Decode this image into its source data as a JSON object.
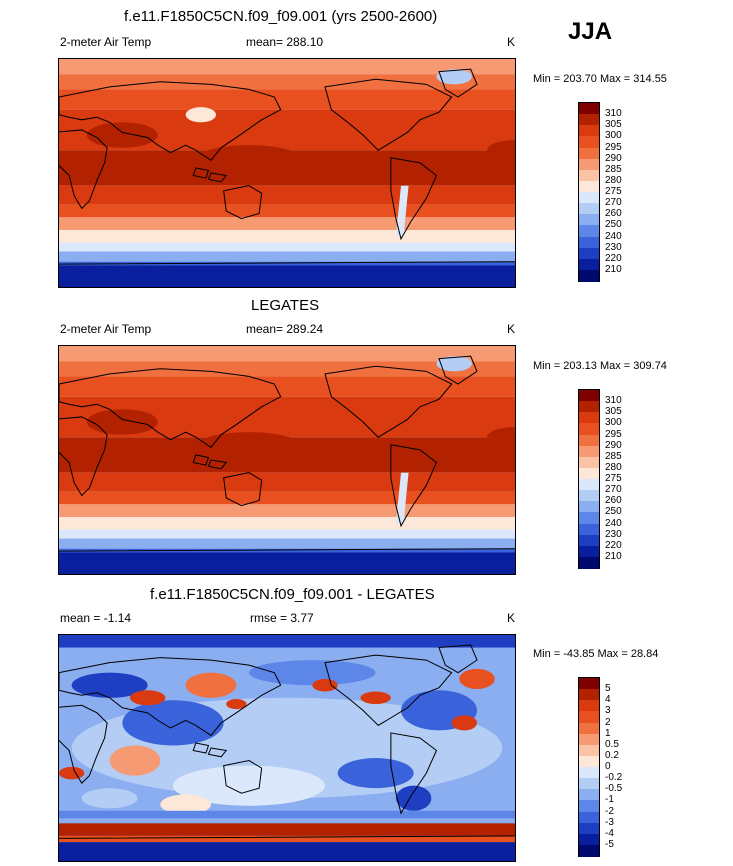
{
  "header": {
    "season_label": "JJA"
  },
  "panels": [
    {
      "id": "model",
      "title": "f.e11.F1850C5CN.f09_f09.001 (yrs 2500-2600)",
      "variable": "2-meter Air Temp",
      "stat_label": "mean= 288.10",
      "units": "K",
      "minmax": "Min = 203.70 Max = 314.55",
      "colorbar_labels": [
        "310",
        "305",
        "300",
        "295",
        "290",
        "285",
        "280",
        "275",
        "270",
        "260",
        "250",
        "240",
        "230",
        "220",
        "210"
      ]
    },
    {
      "id": "obs",
      "title": "LEGATES",
      "variable": "2-meter Air Temp",
      "stat_label": "mean= 289.24",
      "units": "K",
      "minmax": "Min = 203.13 Max = 309.74",
      "colorbar_labels": [
        "310",
        "305",
        "300",
        "295",
        "290",
        "285",
        "280",
        "275",
        "270",
        "260",
        "250",
        "240",
        "230",
        "220",
        "210"
      ]
    },
    {
      "id": "diff",
      "title": "f.e11.F1850C5CN.f09_f09.001 - LEGATES",
      "variable": "mean =  -1.14",
      "stat_label": "rmse =  3.77",
      "units": "K",
      "minmax": "Min = -43.85 Max =  28.84",
      "colorbar_labels": [
        "5",
        "4",
        "3",
        "2",
        "1",
        "0.5",
        "0.2",
        "0",
        "-0.2",
        "-0.5",
        "-1",
        "-2",
        "-3",
        "-4",
        "-5"
      ]
    }
  ],
  "colors": {
    "temp_scale": [
      "#7f0000",
      "#b22200",
      "#d93a10",
      "#e8501f",
      "#f07040",
      "#f59a72",
      "#fac3a6",
      "#fde7d9",
      "#dbe8fb",
      "#b4cdf5",
      "#8aaef0",
      "#5c87e8",
      "#3a63db",
      "#1f3fc2",
      "#0a1f9e",
      "#000a6e"
    ],
    "diff_scale": [
      "#7f0000",
      "#b22200",
      "#d93a10",
      "#e8501f",
      "#f07040",
      "#f59a72",
      "#fac3a6",
      "#fde7d9",
      "#dbe8fb",
      "#b4cdf5",
      "#8aaef0",
      "#5c87e8",
      "#3a63db",
      "#1f3fc2",
      "#0a1f9e",
      "#000a6e"
    ]
  },
  "chart_data": [
    {
      "type": "heatmap",
      "title": "f.e11.F1850C5CN.f09_f09.001 (yrs 2500-2600)",
      "variable": "2-meter Air Temp",
      "units": "K",
      "mean": 288.1,
      "min": 203.7,
      "max": 314.55,
      "season": "JJA",
      "contour_levels": [
        210,
        220,
        230,
        240,
        250,
        260,
        270,
        275,
        280,
        285,
        290,
        295,
        300,
        305,
        310
      ]
    },
    {
      "type": "heatmap",
      "title": "LEGATES",
      "variable": "2-meter Air Temp",
      "units": "K",
      "mean": 289.24,
      "min": 203.13,
      "max": 309.74,
      "season": "JJA",
      "contour_levels": [
        210,
        220,
        230,
        240,
        250,
        260,
        270,
        275,
        280,
        285,
        290,
        295,
        300,
        305,
        310
      ]
    },
    {
      "type": "heatmap",
      "title": "f.e11.F1850C5CN.f09_f09.001 - LEGATES",
      "units": "K",
      "mean": -1.14,
      "rmse": 3.77,
      "min": -43.85,
      "max": 28.84,
      "season": "JJA",
      "contour_levels": [
        -5,
        -4,
        -3,
        -2,
        -1,
        -0.5,
        -0.2,
        0,
        0.2,
        0.5,
        1,
        2,
        3,
        4,
        5
      ]
    }
  ]
}
